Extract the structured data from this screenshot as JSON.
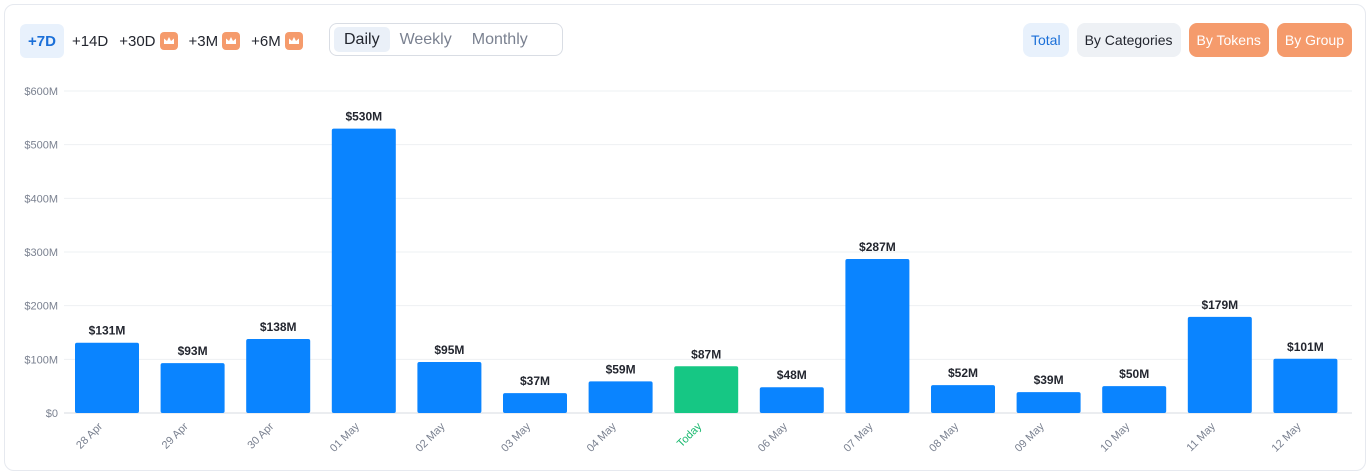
{
  "controls": {
    "ranges": [
      {
        "label": "+7D",
        "active": true,
        "premium": false
      },
      {
        "label": "+14D",
        "active": false,
        "premium": false
      },
      {
        "label": "+30D",
        "active": false,
        "premium": true
      },
      {
        "label": "+3M",
        "active": false,
        "premium": true
      },
      {
        "label": "+6M",
        "active": false,
        "premium": true
      }
    ],
    "periods": [
      {
        "label": "Daily",
        "active": true
      },
      {
        "label": "Weekly",
        "active": false
      },
      {
        "label": "Monthly",
        "active": false
      }
    ],
    "views": {
      "total": "Total",
      "by_categories": "By Categories",
      "by_tokens": "By Tokens",
      "by_group": "By Group"
    }
  },
  "colors": {
    "bar": "#0a84ff",
    "today_bar": "#16c784",
    "premium": "#f59b6c",
    "accent": "#1a6fd8"
  },
  "chart_data": {
    "type": "bar",
    "categories": [
      "28 Apr",
      "29 Apr",
      "30 Apr",
      "01 May",
      "02 May",
      "03 May",
      "04 May",
      "Today",
      "06 May",
      "07 May",
      "08 May",
      "09 May",
      "10 May",
      "11 May",
      "12 May"
    ],
    "values": [
      131,
      93,
      138,
      530,
      95,
      37,
      59,
      87,
      48,
      287,
      52,
      39,
      50,
      179,
      101
    ],
    "data_labels": [
      "$131M",
      "$93M",
      "$138M",
      "$530M",
      "$95M",
      "$37M",
      "$59M",
      "$87M",
      "$48M",
      "$287M",
      "$52M",
      "$39M",
      "$50M",
      "$179M",
      "$101M"
    ],
    "highlight_index": 7,
    "y_ticks": [
      0,
      100,
      200,
      300,
      400,
      500,
      600
    ],
    "y_tick_labels": [
      "$0",
      "$100M",
      "$200M",
      "$300M",
      "$400M",
      "$500M",
      "$600M"
    ],
    "ylim": [
      0,
      600
    ],
    "unit": "USD millions",
    "grid": true,
    "xlabel": "",
    "ylabel": ""
  }
}
